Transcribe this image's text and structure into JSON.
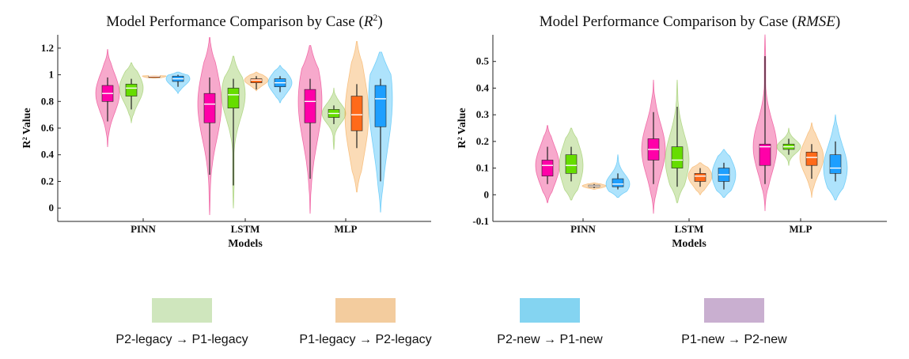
{
  "chart_data": [
    {
      "type": "violin",
      "title": "Model Performance Comparison by Case (",
      "title_math": "R",
      "title_sup": "2",
      "title_close": ")",
      "xlabel": "Models",
      "ylabel": "R² Value",
      "categories": [
        "PINN",
        "LSTM",
        "MLP"
      ],
      "ylim": [
        -0.1,
        1.3
      ],
      "yticks": [
        0,
        0.2,
        0.4,
        0.6,
        0.8,
        1,
        1.2
      ],
      "ytick_labels": [
        "0",
        "0.2",
        "0.4",
        "0.6",
        "0.8",
        "1",
        "1.2"
      ],
      "grid": false,
      "series": [
        {
          "color": "#ff00a8",
          "violin_color": "#e91e7a",
          "stats": [
            {
              "min": 0.65,
              "q1": 0.8,
              "median": 0.86,
              "q3": 0.92,
              "max": 0.98,
              "vmin": 0.46,
              "vmax": 1.19
            },
            {
              "min": 0.25,
              "q1": 0.64,
              "median": 0.78,
              "q3": 0.86,
              "max": 0.98,
              "vmin": -0.05,
              "vmax": 1.28
            },
            {
              "min": 0.22,
              "q1": 0.64,
              "median": 0.8,
              "q3": 0.89,
              "max": 0.97,
              "vmin": -0.04,
              "vmax": 1.22
            }
          ]
        },
        {
          "color": "#66dd00",
          "violin_color": "#8bc34a",
          "stats": [
            {
              "min": 0.74,
              "q1": 0.84,
              "median": 0.9,
              "q3": 0.93,
              "max": 0.97,
              "vmin": 0.64,
              "vmax": 1.09
            },
            {
              "min": 0.17,
              "q1": 0.75,
              "median": 0.85,
              "q3": 0.9,
              "max": 0.97,
              "vmin": 0.0,
              "vmax": 1.14
            },
            {
              "min": 0.63,
              "q1": 0.68,
              "median": 0.71,
              "q3": 0.74,
              "max": 0.77,
              "vmin": 0.44,
              "vmax": 0.9
            }
          ]
        },
        {
          "color": "#ff6a1a",
          "violin_color": "#f4a040",
          "stats": [
            {
              "min": 0.98,
              "q1": 0.98,
              "median": 0.99,
              "q3": 0.99,
              "max": 0.99,
              "vmin": 0.975,
              "vmax": 0.995
            },
            {
              "min": 0.89,
              "q1": 0.94,
              "median": 0.96,
              "q3": 0.97,
              "max": 0.99,
              "vmin": 0.88,
              "vmax": 1.02
            },
            {
              "min": 0.45,
              "q1": 0.58,
              "median": 0.7,
              "q3": 0.84,
              "max": 0.93,
              "vmin": 0.12,
              "vmax": 1.25
            }
          ]
        },
        {
          "color": "#1e9fff",
          "violin_color": "#29b6f6",
          "stats": [
            {
              "min": 0.91,
              "q1": 0.95,
              "median": 0.97,
              "q3": 0.99,
              "max": 1.0,
              "vmin": 0.86,
              "vmax": 1.02
            },
            {
              "min": 0.87,
              "q1": 0.91,
              "median": 0.94,
              "q3": 0.97,
              "max": 0.99,
              "vmin": 0.79,
              "vmax": 1.07
            },
            {
              "min": 0.2,
              "q1": 0.61,
              "median": 0.82,
              "q3": 0.92,
              "max": 0.97,
              "vmin": -0.03,
              "vmax": 1.17
            }
          ]
        }
      ]
    },
    {
      "type": "violin",
      "title": "Model Performance Comparison by Case (",
      "title_math": "RMSE",
      "title_sup": "",
      "title_close": ")",
      "xlabel": "Models",
      "ylabel": "R² Value",
      "categories": [
        "PINN",
        "LSTM",
        "MLP"
      ],
      "ylim": [
        -0.1,
        0.6
      ],
      "yticks": [
        -0.1,
        0,
        0.1,
        0.2,
        0.3,
        0.4,
        0.5
      ],
      "ytick_labels": [
        "-0.1",
        "0",
        "0.1",
        "0.2",
        "0.3",
        "0.4",
        "0.5"
      ],
      "grid": false,
      "series": [
        {
          "color": "#ff00a8",
          "violin_color": "#e91e7a",
          "stats": [
            {
              "min": 0.04,
              "q1": 0.07,
              "median": 0.11,
              "q3": 0.13,
              "max": 0.18,
              "vmin": -0.03,
              "vmax": 0.26
            },
            {
              "min": 0.04,
              "q1": 0.13,
              "median": 0.17,
              "q3": 0.21,
              "max": 0.31,
              "vmin": -0.07,
              "vmax": 0.43
            },
            {
              "min": 0.04,
              "q1": 0.11,
              "median": 0.18,
              "q3": 0.19,
              "max": 0.52,
              "vmin": -0.06,
              "vmax": 0.6
            }
          ]
        },
        {
          "color": "#66dd00",
          "violin_color": "#8bc34a",
          "stats": [
            {
              "min": 0.05,
              "q1": 0.08,
              "median": 0.11,
              "q3": 0.15,
              "max": 0.18,
              "vmin": -0.02,
              "vmax": 0.25
            },
            {
              "min": 0.03,
              "q1": 0.1,
              "median": 0.13,
              "q3": 0.18,
              "max": 0.33,
              "vmin": -0.03,
              "vmax": 0.43
            },
            {
              "min": 0.15,
              "q1": 0.17,
              "median": 0.18,
              "q3": 0.19,
              "max": 0.21,
              "vmin": 0.11,
              "vmax": 0.25
            }
          ]
        },
        {
          "color": "#ff6a1a",
          "violin_color": "#f4a040",
          "stats": [
            {
              "min": 0.025,
              "q1": 0.03,
              "median": 0.033,
              "q3": 0.036,
              "max": 0.04,
              "vmin": 0.02,
              "vmax": 0.045
            },
            {
              "min": 0.03,
              "q1": 0.05,
              "median": 0.07,
              "q3": 0.08,
              "max": 0.1,
              "vmin": 0.0,
              "vmax": 0.12
            },
            {
              "min": 0.06,
              "q1": 0.11,
              "median": 0.14,
              "q3": 0.16,
              "max": 0.19,
              "vmin": -0.01,
              "vmax": 0.27
            }
          ]
        },
        {
          "color": "#1e9fff",
          "violin_color": "#29b6f6",
          "stats": [
            {
              "min": 0.02,
              "q1": 0.03,
              "median": 0.04,
              "q3": 0.06,
              "max": 0.08,
              "vmin": -0.01,
              "vmax": 0.15
            },
            {
              "min": 0.02,
              "q1": 0.05,
              "median": 0.075,
              "q3": 0.1,
              "max": 0.12,
              "vmin": -0.01,
              "vmax": 0.17
            },
            {
              "min": 0.05,
              "q1": 0.08,
              "median": 0.1,
              "q3": 0.15,
              "max": 0.2,
              "vmin": -0.02,
              "vmax": 0.3
            }
          ]
        }
      ]
    }
  ],
  "legend": {
    "items": [
      {
        "label": "P2-legacy → P1-legacy",
        "color": "#cfe6bd"
      },
      {
        "label": "P1-legacy → P2-legacy",
        "color": "#f3cc9e"
      },
      {
        "label": "P2-new → P1-new",
        "color": "#84d4f1"
      },
      {
        "label": "P1-new → P2-new",
        "color": "#c9afd0"
      }
    ]
  }
}
